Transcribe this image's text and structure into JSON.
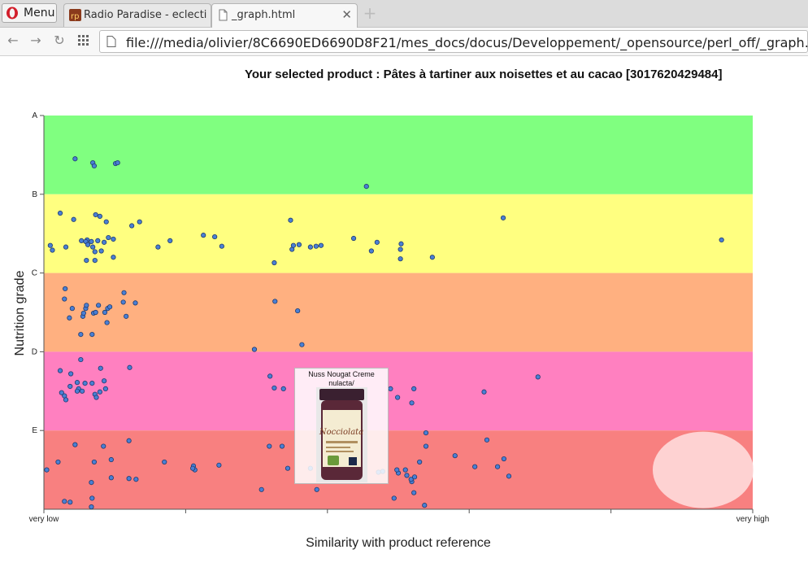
{
  "browser": {
    "menu_label": "Menu",
    "tabs": [
      {
        "label": "Radio Paradise - eclecti",
        "active": false
      },
      {
        "label": "_graph.html",
        "active": true
      }
    ],
    "url": "file:///media/olivier/8C6690ED6690D8F21/mes_docs/docus/Developpement/_opensource/perl_off/_graph.html"
  },
  "page": {
    "title": "Your selected product : Pâtes à tartiner aux noisettes et au cacao [3017620429484]"
  },
  "tooltip": {
    "title": "Nuss Nougat Creme nulacta/",
    "jar_label": "Nocciolata"
  },
  "chart_data": {
    "type": "scatter",
    "xlabel": "Similarity with product reference",
    "ylabel": "Nutrition grade",
    "x_tick_labels": [
      "very low",
      "very high"
    ],
    "y_tick_labels": [
      "A",
      "B",
      "C",
      "D",
      "E"
    ],
    "xlim": [
      0,
      1
    ],
    "ylim": [
      0,
      5
    ],
    "bands": [
      {
        "grade": "A",
        "color": "#80ff80"
      },
      {
        "grade": "B",
        "color": "#ffff80"
      },
      {
        "grade": "C",
        "color": "#ffb080"
      },
      {
        "grade": "D",
        "color": "#ff80c0"
      },
      {
        "grade": "E",
        "color": "#f88080"
      }
    ],
    "point_color": "#4a7fd4",
    "reference_marker_color": "#ffe0e0",
    "reference": {
      "x": 0.93,
      "y": 0.5
    },
    "points": [
      [
        0.044,
        4.45
      ],
      [
        0.069,
        4.4
      ],
      [
        0.071,
        4.36
      ],
      [
        0.101,
        4.39
      ],
      [
        0.104,
        4.4
      ],
      [
        0.455,
        4.1
      ],
      [
        0.023,
        3.76
      ],
      [
        0.042,
        3.68
      ],
      [
        0.073,
        3.74
      ],
      [
        0.088,
        3.65
      ],
      [
        0.124,
        3.6
      ],
      [
        0.135,
        3.65
      ],
      [
        0.091,
        3.45
      ],
      [
        0.098,
        3.43
      ],
      [
        0.079,
        3.72
      ],
      [
        0.061,
        3.42
      ],
      [
        0.053,
        3.41
      ],
      [
        0.059,
        3.4
      ],
      [
        0.067,
        3.4
      ],
      [
        0.076,
        3.41
      ],
      [
        0.062,
        3.36
      ],
      [
        0.069,
        3.33
      ],
      [
        0.012,
        3.29
      ],
      [
        0.009,
        3.35
      ],
      [
        0.031,
        3.33
      ],
      [
        0.085,
        3.39
      ],
      [
        0.072,
        3.27
      ],
      [
        0.081,
        3.28
      ],
      [
        0.072,
        3.16
      ],
      [
        0.06,
        3.16
      ],
      [
        0.098,
        3.2
      ],
      [
        0.161,
        3.33
      ],
      [
        0.178,
        3.41
      ],
      [
        0.225,
        3.48
      ],
      [
        0.241,
        3.46
      ],
      [
        0.251,
        3.34
      ],
      [
        0.348,
        3.67
      ],
      [
        0.35,
        3.3
      ],
      [
        0.36,
        3.36
      ],
      [
        0.352,
        3.35
      ],
      [
        0.391,
        3.35
      ],
      [
        0.376,
        3.33
      ],
      [
        0.384,
        3.34
      ],
      [
        0.325,
        3.13
      ],
      [
        0.437,
        3.44
      ],
      [
        0.47,
        3.39
      ],
      [
        0.503,
        3.3
      ],
      [
        0.504,
        3.37
      ],
      [
        0.503,
        3.18
      ],
      [
        0.548,
        3.2
      ],
      [
        0.462,
        3.28
      ],
      [
        0.648,
        3.7
      ],
      [
        0.956,
        3.42
      ],
      [
        0.03,
        2.8
      ],
      [
        0.029,
        2.67
      ],
      [
        0.04,
        2.55
      ],
      [
        0.055,
        2.45
      ],
      [
        0.059,
        2.55
      ],
      [
        0.056,
        2.49
      ],
      [
        0.06,
        2.59
      ],
      [
        0.07,
        2.49
      ],
      [
        0.077,
        2.59
      ],
      [
        0.086,
        2.5
      ],
      [
        0.09,
        2.55
      ],
      [
        0.093,
        2.57
      ],
      [
        0.112,
        2.63
      ],
      [
        0.113,
        2.75
      ],
      [
        0.129,
        2.62
      ],
      [
        0.116,
        2.45
      ],
      [
        0.073,
        2.5
      ],
      [
        0.068,
        2.22
      ],
      [
        0.052,
        2.22
      ],
      [
        0.036,
        2.43
      ],
      [
        0.089,
        2.37
      ],
      [
        0.297,
        2.03
      ],
      [
        0.326,
        2.64
      ],
      [
        0.358,
        2.52
      ],
      [
        0.364,
        2.09
      ],
      [
        0.052,
        1.9
      ],
      [
        0.023,
        1.76
      ],
      [
        0.047,
        1.61
      ],
      [
        0.025,
        1.48
      ],
      [
        0.049,
        1.53
      ],
      [
        0.038,
        1.72
      ],
      [
        0.037,
        1.56
      ],
      [
        0.047,
        1.5
      ],
      [
        0.029,
        1.44
      ],
      [
        0.031,
        1.39
      ],
      [
        0.08,
        1.79
      ],
      [
        0.068,
        1.6
      ],
      [
        0.058,
        1.6
      ],
      [
        0.054,
        1.5
      ],
      [
        0.072,
        1.46
      ],
      [
        0.085,
        1.63
      ],
      [
        0.079,
        1.49
      ],
      [
        0.087,
        1.53
      ],
      [
        0.074,
        1.42
      ],
      [
        0.121,
        1.8
      ],
      [
        0.319,
        1.69
      ],
      [
        0.325,
        1.54
      ],
      [
        0.338,
        1.53
      ],
      [
        0.489,
        1.53
      ],
      [
        0.499,
        1.42
      ],
      [
        0.519,
        1.35
      ],
      [
        0.522,
        1.53
      ],
      [
        0.621,
        1.49
      ],
      [
        0.697,
        1.68
      ],
      [
        0.004,
        0.5
      ],
      [
        0.02,
        0.6
      ],
      [
        0.044,
        0.82
      ],
      [
        0.084,
        0.8
      ],
      [
        0.071,
        0.6
      ],
      [
        0.095,
        0.63
      ],
      [
        0.12,
        0.87
      ],
      [
        0.17,
        0.6
      ],
      [
        0.211,
        0.55
      ],
      [
        0.213,
        0.5
      ],
      [
        0.21,
        0.52
      ],
      [
        0.247,
        0.56
      ],
      [
        0.318,
        0.8
      ],
      [
        0.336,
        0.8
      ],
      [
        0.344,
        0.52
      ],
      [
        0.376,
        0.52
      ],
      [
        0.307,
        0.25
      ],
      [
        0.385,
        0.25
      ],
      [
        0.472,
        0.47
      ],
      [
        0.478,
        0.48
      ],
      [
        0.5,
        0.46
      ],
      [
        0.498,
        0.5
      ],
      [
        0.51,
        0.5
      ],
      [
        0.512,
        0.43
      ],
      [
        0.519,
        0.35
      ],
      [
        0.522,
        0.21
      ],
      [
        0.53,
        0.6
      ],
      [
        0.518,
        0.38
      ],
      [
        0.523,
        0.41
      ],
      [
        0.494,
        0.14
      ],
      [
        0.539,
        0.8
      ],
      [
        0.539,
        0.97
      ],
      [
        0.58,
        0.68
      ],
      [
        0.608,
        0.54
      ],
      [
        0.625,
        0.88
      ],
      [
        0.64,
        0.54
      ],
      [
        0.649,
        0.64
      ],
      [
        0.656,
        0.42
      ],
      [
        0.029,
        0.1
      ],
      [
        0.037,
        0.09
      ],
      [
        0.068,
        0.14
      ],
      [
        0.067,
        0.03
      ],
      [
        0.067,
        0.34
      ],
      [
        0.095,
        0.4
      ],
      [
        0.12,
        0.39
      ],
      [
        0.13,
        0.38
      ],
      [
        0.537,
        0.05
      ]
    ]
  }
}
